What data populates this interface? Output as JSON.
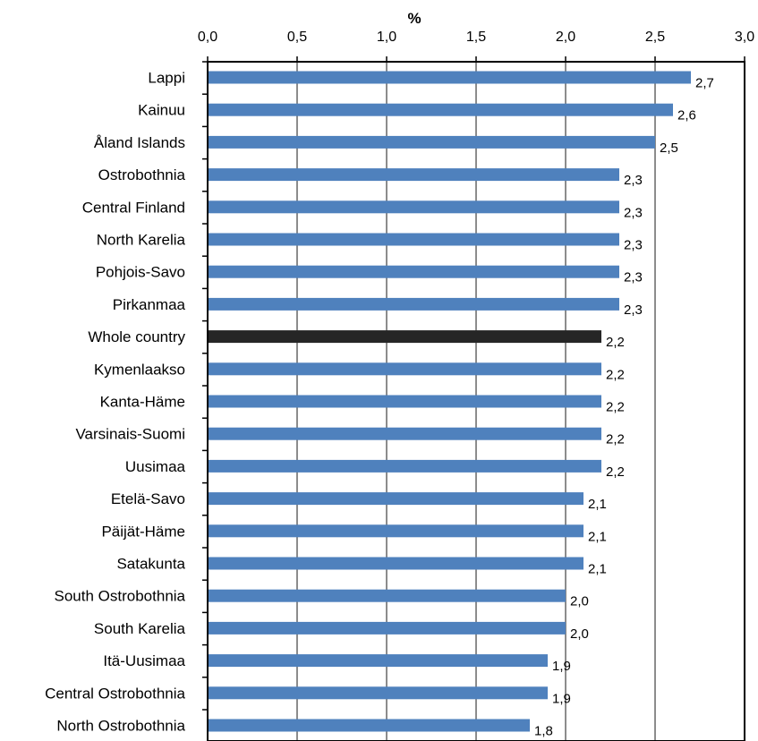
{
  "chart_data": {
    "type": "bar",
    "orientation": "horizontal",
    "title": "",
    "xlabel": "%",
    "ylabel": "",
    "xlim": [
      0,
      3.0
    ],
    "xticks": [
      0,
      0.5,
      1.0,
      1.5,
      2.0,
      2.5,
      3.0
    ],
    "xtick_labels": [
      "0,0",
      "0,5",
      "1,0",
      "1,5",
      "2,0",
      "2,5",
      "3,0"
    ],
    "x_axis_position": "top",
    "grid": "vertical",
    "legend": "none",
    "categories": [
      "Lappi",
      "Kainuu",
      "Åland Islands",
      "Ostrobothnia",
      "Central Finland",
      "North Karelia",
      "Pohjois-Savo",
      "Pirkanmaa",
      "Whole country",
      "Kymenlaakso",
      "Kanta-Häme",
      "Varsinais-Suomi",
      "Uusimaa",
      "Etelä-Savo",
      "Päijät-Häme",
      "Satakunta",
      "South Ostrobothnia",
      "South Karelia",
      "Itä-Uusimaa",
      "Central Ostrobothnia",
      "North Ostrobothnia"
    ],
    "values": [
      2.7,
      2.6,
      2.5,
      2.3,
      2.3,
      2.3,
      2.3,
      2.3,
      2.2,
      2.2,
      2.2,
      2.2,
      2.2,
      2.1,
      2.1,
      2.1,
      2.0,
      2.0,
      1.9,
      1.9,
      1.8
    ],
    "value_labels": [
      "2,7",
      "2,6",
      "2,5",
      "2,3",
      "2,3",
      "2,3",
      "2,3",
      "2,3",
      "2,2",
      "2,2",
      "2,2",
      "2,2",
      "2,2",
      "2,1",
      "2,1",
      "2,1",
      "2,0",
      "2,0",
      "1,9",
      "1,9",
      "1,8"
    ],
    "bar_color": "#4f81bd",
    "highlight_category": "Whole country",
    "highlight_color": "#262626",
    "grid_color": "#8c8c8c"
  }
}
